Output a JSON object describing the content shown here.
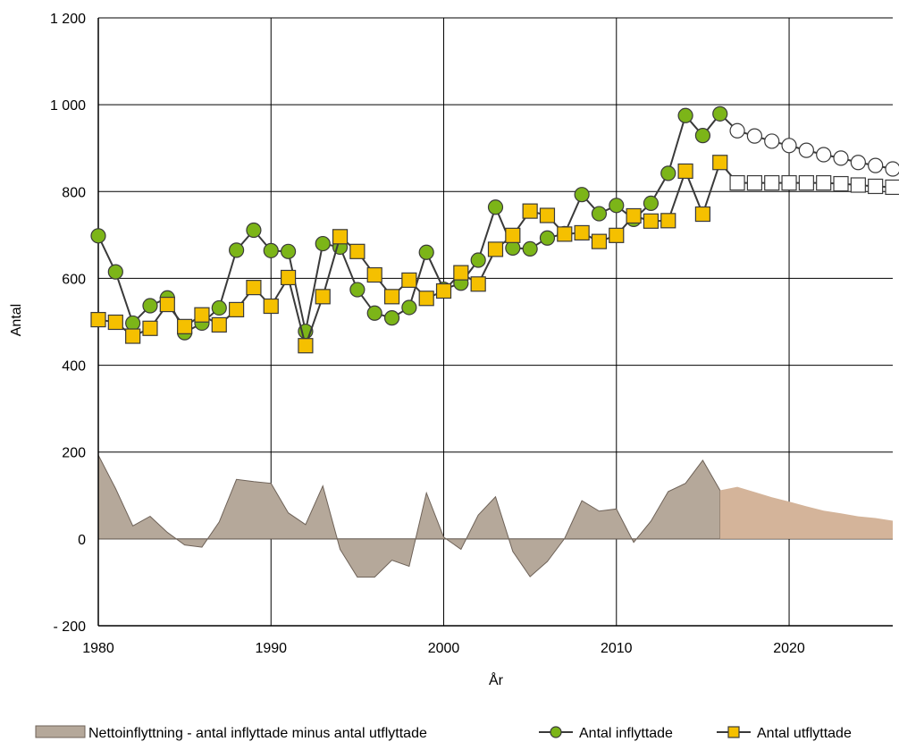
{
  "chart_data": {
    "type": "line",
    "title": "",
    "xlabel": "År",
    "ylabel": "Antal",
    "xlim": [
      1980,
      2026
    ],
    "ylim": [
      -200,
      1200
    ],
    "x_ticks": [
      1980,
      1990,
      2000,
      2010,
      2020
    ],
    "x_tick_labels": [
      "1980",
      "1990",
      "2000",
      "2010",
      "2020"
    ],
    "y_ticks": [
      -200,
      0,
      200,
      400,
      600,
      800,
      1000,
      1200
    ],
    "y_tick_labels": [
      "- 200",
      "0",
      "200",
      "400",
      "600",
      "800",
      "1 000",
      "1 200"
    ],
    "grid": true,
    "legend_position": "bottom",
    "historical_end_year": 2016,
    "colors": {
      "net_hist": "#b5a89a",
      "net_forecast": "#d4b49a",
      "inflyttade": "#7cb518",
      "utflyttade": "#f5c000",
      "line": "#3a3a3a",
      "forecast_marker": "#ffffff"
    },
    "series": [
      {
        "name": "Antal inflyttade",
        "x": [
          1980,
          1981,
          1982,
          1983,
          1984,
          1985,
          1986,
          1987,
          1988,
          1989,
          1990,
          1991,
          1992,
          1993,
          1994,
          1995,
          1996,
          1997,
          1998,
          1999,
          2000,
          2001,
          2002,
          2003,
          2004,
          2005,
          2006,
          2007,
          2008,
          2009,
          2010,
          2011,
          2012,
          2013,
          2014,
          2015,
          2016,
          2017,
          2018,
          2019,
          2020,
          2021,
          2022,
          2023,
          2024,
          2025,
          2026
        ],
        "values": [
          698,
          615,
          497,
          537,
          555,
          475,
          497,
          532,
          665,
          711,
          664,
          662,
          478,
          680,
          672,
          574,
          520,
          509,
          533,
          660,
          575,
          589,
          642,
          764,
          670,
          668,
          693,
          703,
          793,
          749,
          768,
          736,
          773,
          842,
          975,
          929,
          979,
          940,
          928,
          916,
          906,
          895,
          885,
          877,
          867,
          860,
          852
        ]
      },
      {
        "name": "Antal utflyttade",
        "x": [
          1980,
          1981,
          1982,
          1983,
          1984,
          1985,
          1986,
          1987,
          1988,
          1989,
          1990,
          1991,
          1992,
          1993,
          1994,
          1995,
          1996,
          1997,
          1998,
          1999,
          2000,
          2001,
          2002,
          2003,
          2004,
          2005,
          2006,
          2007,
          2008,
          2009,
          2010,
          2011,
          2012,
          2013,
          2014,
          2015,
          2016,
          2017,
          2018,
          2019,
          2020,
          2021,
          2022,
          2023,
          2024,
          2025,
          2026
        ],
        "values": [
          505,
          499,
          467,
          485,
          540,
          489,
          516,
          493,
          528,
          579,
          536,
          602,
          445,
          558,
          696,
          662,
          608,
          558,
          596,
          554,
          571,
          613,
          587,
          667,
          699,
          755,
          745,
          702,
          705,
          685,
          699,
          744,
          732,
          733,
          847,
          748,
          867,
          820,
          820,
          820,
          820,
          820,
          820,
          818,
          815,
          812,
          810
        ]
      },
      {
        "name": "Nettoinflyttning - antal inflyttade minus antal utflyttade",
        "x": [
          1980,
          1981,
          1982,
          1983,
          1984,
          1985,
          1986,
          1987,
          1988,
          1989,
          1990,
          1991,
          1992,
          1993,
          1994,
          1995,
          1996,
          1997,
          1998,
          1999,
          2000,
          2001,
          2002,
          2003,
          2004,
          2005,
          2006,
          2007,
          2008,
          2009,
          2010,
          2011,
          2012,
          2013,
          2014,
          2015,
          2016,
          2017,
          2018,
          2019,
          2020,
          2021,
          2022,
          2023,
          2024,
          2025,
          2026
        ],
        "values": [
          193,
          116,
          30,
          52,
          15,
          -14,
          -19,
          39,
          137,
          132,
          128,
          60,
          33,
          122,
          -24,
          -88,
          -88,
          -49,
          -63,
          106,
          4,
          -24,
          55,
          97,
          -29,
          -87,
          -52,
          1,
          88,
          64,
          69,
          -8,
          41,
          109,
          128,
          181,
          112,
          120,
          108,
          96,
          86,
          75,
          65,
          59,
          52,
          48,
          42
        ]
      }
    ],
    "legend": [
      {
        "label": "Nettoinflyttning - antal inflyttade minus antal utflyttade",
        "kind": "area"
      },
      {
        "label": "Antal inflyttade",
        "kind": "circle"
      },
      {
        "label": "Antal utflyttade",
        "kind": "square"
      }
    ]
  }
}
